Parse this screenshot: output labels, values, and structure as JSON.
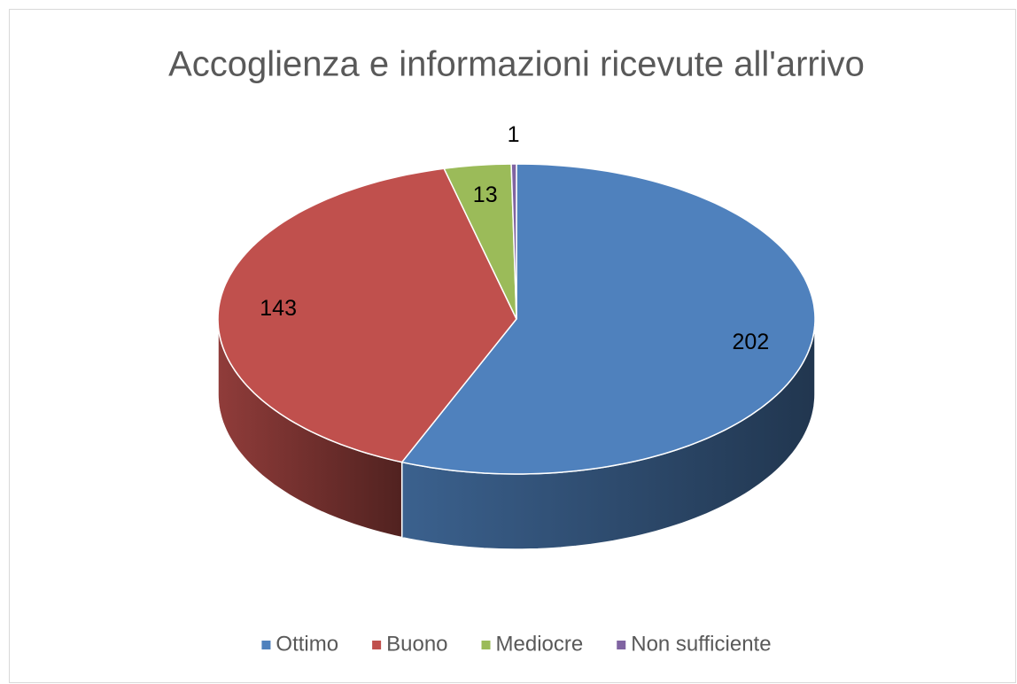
{
  "chart_data": {
    "type": "pie",
    "title": "Accoglienza e informazioni ricevute all'arrivo",
    "categories": [
      "Ottimo",
      "Buono",
      "Mediocre",
      "Non sufficiente"
    ],
    "values": [
      202,
      143,
      13,
      1
    ],
    "colors": [
      "#4f81bd",
      "#c0504d",
      "#9bbb59",
      "#8064a2"
    ],
    "legend": "bottom"
  }
}
